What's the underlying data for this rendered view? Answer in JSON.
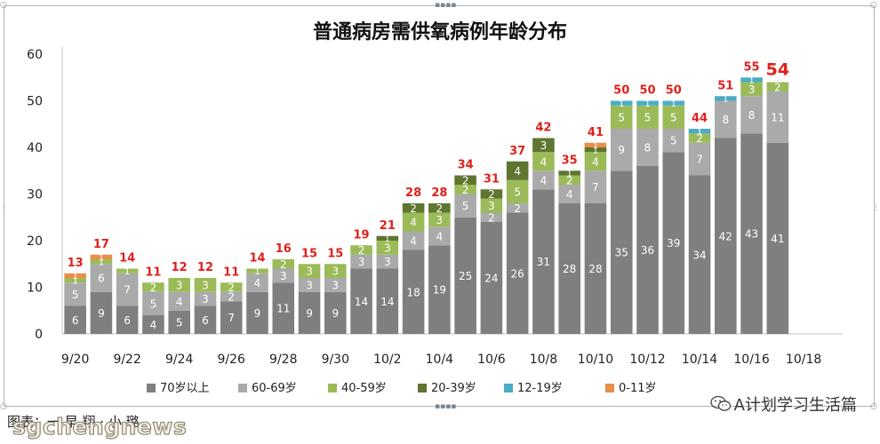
{
  "chart_data": {
    "type": "bar",
    "stacked": true,
    "title": "普通病房需供氧病例年龄分布",
    "ylim": [
      0,
      60
    ],
    "yticks": [
      0,
      10,
      20,
      30,
      40,
      50,
      60
    ],
    "grid": false,
    "legend_position": "bottom",
    "x_tick_labels": [
      "9/20",
      "9/22",
      "9/24",
      "9/26",
      "9/28",
      "9/30",
      "10/2",
      "10/4",
      "10/6",
      "10/8",
      "10/10",
      "10/12",
      "10/14",
      "10/16",
      "10/18"
    ],
    "categories": [
      "9/20",
      "9/21",
      "9/22",
      "9/23",
      "9/24",
      "9/25",
      "9/26",
      "9/27",
      "9/28",
      "9/29",
      "9/30",
      "10/1",
      "10/2",
      "10/3",
      "10/4",
      "10/5",
      "10/6",
      "10/7",
      "10/8",
      "10/9",
      "10/10",
      "10/11",
      "10/12",
      "10/13",
      "10/14",
      "10/15",
      "10/16",
      "10/17"
    ],
    "series": [
      {
        "name": "70岁以上",
        "color": "#7f7f7f",
        "values": [
          6,
          9,
          6,
          4,
          5,
          6,
          7,
          9,
          11,
          9,
          9,
          14,
          14,
          18,
          19,
          25,
          24,
          26,
          31,
          28,
          28,
          35,
          36,
          39,
          34,
          42,
          43,
          41
        ]
      },
      {
        "name": "60-69岁",
        "color": "#aaaaaa",
        "values": [
          5,
          6,
          7,
          5,
          4,
          3,
          2,
          4,
          3,
          3,
          3,
          3,
          3,
          4,
          4,
          5,
          2,
          2,
          4,
          4,
          7,
          9,
          8,
          5,
          7,
          8,
          8,
          11
        ]
      },
      {
        "name": "40-59岁",
        "color": "#9bbb59",
        "values": [
          1,
          1,
          1,
          2,
          3,
          3,
          2,
          1,
          2,
          3,
          3,
          2,
          3,
          4,
          3,
          2,
          3,
          5,
          4,
          2,
          4,
          5,
          5,
          5,
          2,
          0,
          3,
          2
        ]
      },
      {
        "name": "20-39岁",
        "color": "#5f7530",
        "values": [
          0,
          0,
          0,
          0,
          0,
          0,
          0,
          0,
          0,
          0,
          0,
          0,
          1,
          2,
          2,
          2,
          2,
          4,
          3,
          1,
          1,
          0,
          0,
          0,
          0,
          0,
          0,
          0
        ]
      },
      {
        "name": "12-19岁",
        "color": "#4bacc6",
        "values": [
          0,
          0,
          0,
          0,
          0,
          0,
          0,
          0,
          0,
          0,
          0,
          0,
          0,
          0,
          0,
          0,
          0,
          0,
          0,
          0,
          0,
          1,
          1,
          1,
          1,
          1,
          1,
          0
        ]
      },
      {
        "name": "0-11岁",
        "color": "#e88f4a",
        "values": [
          1,
          1,
          0,
          0,
          0,
          0,
          0,
          0,
          0,
          0,
          0,
          0,
          0,
          0,
          0,
          0,
          0,
          0,
          0,
          0,
          1,
          0,
          0,
          0,
          0,
          0,
          0,
          0
        ]
      }
    ],
    "totals": [
      13,
      17,
      14,
      11,
      12,
      12,
      11,
      14,
      16,
      15,
      15,
      19,
      21,
      28,
      28,
      34,
      31,
      37,
      42,
      35,
      41,
      50,
      50,
      50,
      44,
      51,
      55,
      54
    ],
    "total_label_color": "#e0201b"
  },
  "footer": {
    "source_text": "图表：一 早 翔 · 小 璐",
    "watermark": "sgchengnews",
    "wechat_account": "A计划学习生活篇"
  }
}
